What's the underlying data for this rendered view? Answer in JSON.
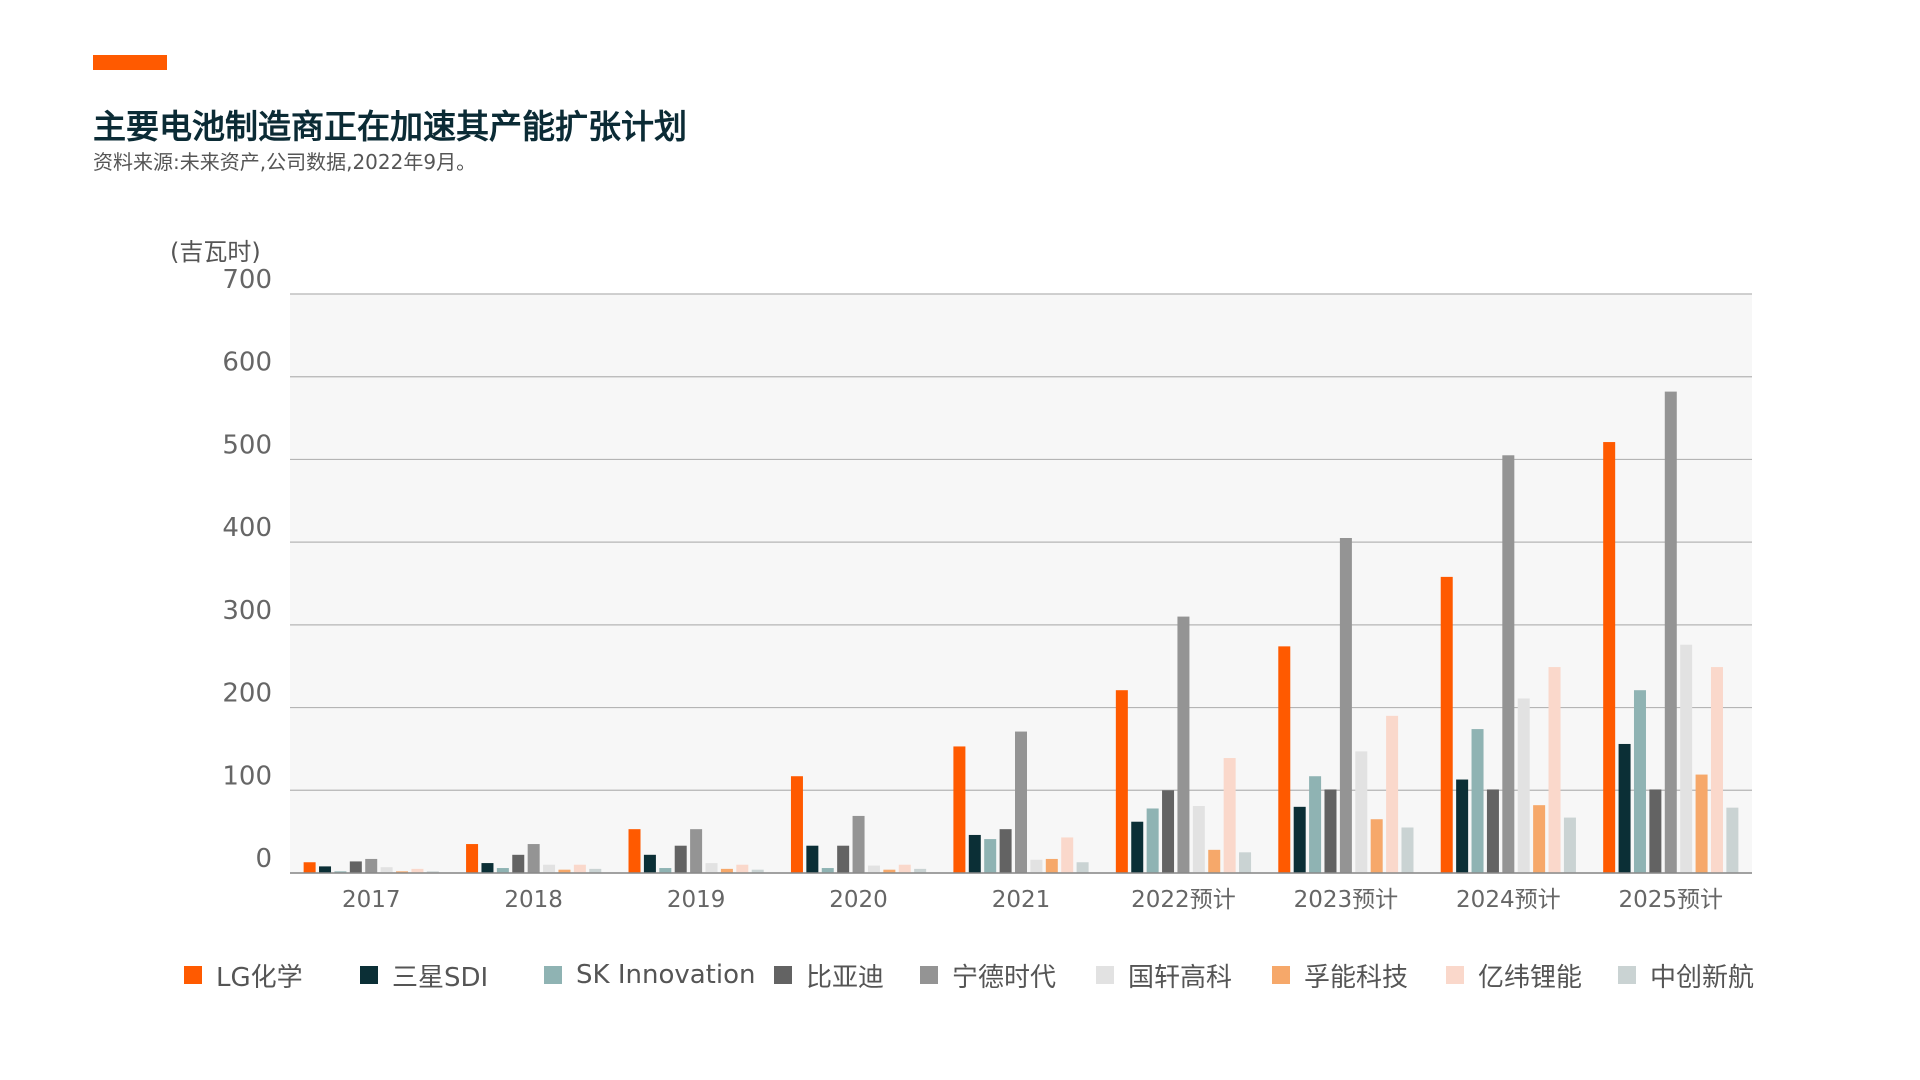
{
  "header": {
    "title": "主要电池制造商正在加速其产能扩张计划",
    "subtitle": "资料来源:未来资产,公司数据,2022年9月。",
    "accent_color": "#ff5a00"
  },
  "chart_data": {
    "type": "bar",
    "title": "主要电池制造商正在加速其产能扩张计划",
    "ylabel": "(吉瓦时)",
    "xlabel": "",
    "ylim": [
      0,
      700
    ],
    "yticks": [
      0,
      100,
      200,
      300,
      400,
      500,
      600,
      700
    ],
    "grid": true,
    "legend_position": "bottom",
    "categories": [
      "2017",
      "2018",
      "2019",
      "2020",
      "2021",
      "2022预计",
      "2023预计",
      "2024预计",
      "2025预计"
    ],
    "series": [
      {
        "name": "LG化学",
        "color": "#ff5a00",
        "values": [
          13,
          35,
          53,
          117,
          153,
          221,
          274,
          358,
          521
        ]
      },
      {
        "name": "三星SDI",
        "color": "#0b2f36",
        "values": [
          8,
          12,
          22,
          33,
          46,
          62,
          80,
          113,
          156
        ]
      },
      {
        "name": "SK Innovation",
        "color": "#8fb3b3",
        "values": [
          2,
          6,
          6,
          6,
          41,
          78,
          117,
          174,
          221
        ]
      },
      {
        "name": "比亚迪",
        "color": "#636363",
        "values": [
          14,
          22,
          33,
          33,
          53,
          100,
          101,
          101,
          101
        ]
      },
      {
        "name": "宁德时代",
        "color": "#949494",
        "values": [
          17,
          35,
          53,
          69,
          171,
          310,
          405,
          505,
          582
        ]
      },
      {
        "name": "国轩高科",
        "color": "#e2e2e2",
        "values": [
          7,
          10,
          12,
          9,
          16,
          81,
          147,
          211,
          276
        ]
      },
      {
        "name": "孚能科技",
        "color": "#f6a86a",
        "values": [
          2,
          4,
          5,
          4,
          17,
          28,
          65,
          82,
          119
        ]
      },
      {
        "name": "亿纬锂能",
        "color": "#fad8cb",
        "values": [
          5,
          10,
          10,
          10,
          43,
          139,
          190,
          249,
          249
        ]
      },
      {
        "name": "中创新航",
        "color": "#cad3d3",
        "values": [
          2,
          5,
          4,
          5,
          13,
          25,
          55,
          67,
          79
        ]
      }
    ]
  }
}
